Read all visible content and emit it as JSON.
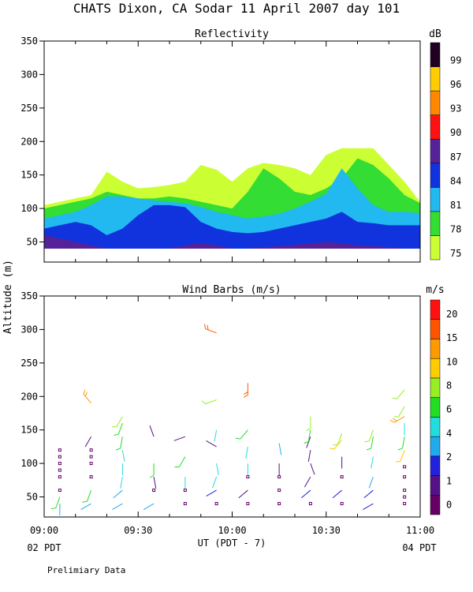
{
  "title": "CHATS Dixon, CA   Sodar   11 April 2007   day 101",
  "ylabel": "Altitude (m)",
  "xlabel": "UT  (PDT - 7)",
  "x_ticks": [
    "09:00",
    "09:30",
    "10:00",
    "10:30",
    "11:00"
  ],
  "pdt_left": "02 PDT",
  "pdt_right": "04 PDT",
  "footer": "Prelimiary Data",
  "chart_data": [
    {
      "type": "area",
      "title": "Reflectivity",
      "xlim": [
        0,
        120
      ],
      "ylim": [
        20,
        350
      ],
      "y_ticks": [
        50,
        100,
        150,
        200,
        250,
        300,
        350
      ],
      "legend": {
        "unit": "dB",
        "levels": [
          75,
          78,
          81,
          84,
          87,
          90,
          93,
          96,
          99
        ],
        "colors": [
          "#ccff33",
          "#33dd33",
          "#22b8f0",
          "#1133dd",
          "#552299",
          "#ff1111",
          "#ff8800",
          "#ffcc00",
          "#220022"
        ]
      },
      "contour_tops_x": [
        0,
        5,
        10,
        15,
        20,
        25,
        30,
        35,
        40,
        45,
        50,
        55,
        60,
        65,
        70,
        75,
        80,
        85,
        90,
        95,
        100,
        105,
        110,
        115,
        120
      ],
      "layers": [
        {
          "name": "75",
          "tops": [
            105,
            110,
            115,
            120,
            155,
            140,
            130,
            132,
            135,
            140,
            165,
            158,
            140,
            160,
            168,
            165,
            160,
            150,
            180,
            190,
            190,
            190,
            165,
            140,
            110
          ]
        },
        {
          "name": "78",
          "tops": [
            100,
            105,
            110,
            115,
            125,
            120,
            115,
            115,
            118,
            115,
            110,
            105,
            100,
            125,
            160,
            145,
            125,
            120,
            130,
            145,
            175,
            165,
            145,
            120,
            108
          ]
        },
        {
          "name": "81",
          "tops": [
            85,
            90,
            95,
            105,
            118,
            118,
            115,
            112,
            110,
            108,
            102,
            95,
            90,
            85,
            88,
            92,
            100,
            110,
            122,
            160,
            130,
            105,
            95,
            95,
            93
          ]
        },
        {
          "name": "84",
          "tops": [
            70,
            75,
            80,
            75,
            60,
            70,
            90,
            105,
            105,
            102,
            80,
            70,
            65,
            63,
            65,
            70,
            75,
            80,
            85,
            95,
            80,
            78,
            75,
            75,
            75
          ]
        },
        {
          "name": "87",
          "tops": [
            60,
            55,
            50,
            45,
            40,
            40,
            40,
            40,
            40,
            45,
            48,
            45,
            40,
            40,
            42,
            44,
            46,
            48,
            50,
            48,
            45,
            44,
            42,
            40,
            40
          ]
        }
      ]
    },
    {
      "type": "scatter",
      "title": "Wind Barbs (m/s)",
      "xlim": [
        0,
        120
      ],
      "ylim": [
        20,
        350
      ],
      "y_ticks": [
        50,
        100,
        150,
        200,
        250,
        300,
        350
      ],
      "legend": {
        "unit": "m/s",
        "labels": [
          "0",
          "1",
          "2",
          "4",
          "6",
          "8",
          "10",
          "15",
          "20"
        ],
        "colors": [
          "#660066",
          "#551188",
          "#2222dd",
          "#22aaee",
          "#22dddd",
          "#22dd22",
          "#99ee22",
          "#ffcc00",
          "#ff9900",
          "#ff5500",
          "#ff1111"
        ]
      },
      "barbs": [
        {
          "t": 5,
          "z": 40,
          "ws": 3,
          "dir": 180
        },
        {
          "t": 5,
          "z": 50,
          "ws": 5,
          "dir": 200
        },
        {
          "t": 5,
          "z": 60,
          "ws": 0,
          "dir": 0
        },
        {
          "t": 5,
          "z": 80,
          "ws": 0,
          "dir": 0
        },
        {
          "t": 5,
          "z": 90,
          "ws": 0,
          "dir": 0
        },
        {
          "t": 5,
          "z": 100,
          "ws": 0,
          "dir": 0
        },
        {
          "t": 5,
          "z": 110,
          "ws": 0,
          "dir": 0
        },
        {
          "t": 5,
          "z": 120,
          "ws": 0,
          "dir": 0
        },
        {
          "t": 15,
          "z": 40,
          "ws": 3,
          "dir": 240
        },
        {
          "t": 15,
          "z": 60,
          "ws": 5,
          "dir": 200
        },
        {
          "t": 15,
          "z": 80,
          "ws": 0,
          "dir": 0
        },
        {
          "t": 15,
          "z": 100,
          "ws": 0,
          "dir": 0
        },
        {
          "t": 15,
          "z": 110,
          "ws": 0,
          "dir": 0
        },
        {
          "t": 15,
          "z": 120,
          "ws": 0,
          "dir": 0
        },
        {
          "t": 15,
          "z": 140,
          "ws": 1,
          "dir": 210
        },
        {
          "t": 15,
          "z": 190,
          "ws": 10,
          "dir": 320
        },
        {
          "t": 25,
          "z": 40,
          "ws": 3,
          "dir": 240
        },
        {
          "t": 25,
          "z": 60,
          "ws": 3,
          "dir": 230
        },
        {
          "t": 25,
          "z": 80,
          "ws": 4,
          "dir": 190
        },
        {
          "t": 25,
          "z": 100,
          "ws": 4,
          "dir": 180
        },
        {
          "t": 25,
          "z": 120,
          "ws": 4,
          "dir": 170
        },
        {
          "t": 25,
          "z": 140,
          "ws": 5,
          "dir": 190
        },
        {
          "t": 25,
          "z": 160,
          "ws": 5,
          "dir": 200
        },
        {
          "t": 25,
          "z": 170,
          "ws": 6,
          "dir": 210
        },
        {
          "t": 35,
          "z": 40,
          "ws": 3,
          "dir": 240
        },
        {
          "t": 35,
          "z": 60,
          "ws": 0,
          "dir": 0
        },
        {
          "t": 35,
          "z": 80,
          "ws": 1,
          "dir": 170
        },
        {
          "t": 35,
          "z": 100,
          "ws": 5,
          "dir": 180
        },
        {
          "t": 35,
          "z": 140,
          "ws": 1,
          "dir": 340
        },
        {
          "t": 45,
          "z": 40,
          "ws": 0,
          "dir": 0
        },
        {
          "t": 45,
          "z": 60,
          "ws": 0,
          "dir": 0
        },
        {
          "t": 45,
          "z": 80,
          "ws": 4,
          "dir": 180
        },
        {
          "t": 45,
          "z": 110,
          "ws": 5,
          "dir": 210
        },
        {
          "t": 45,
          "z": 140,
          "ws": 1,
          "dir": 250
        },
        {
          "t": 55,
          "z": 40,
          "ws": 0,
          "dir": 0
        },
        {
          "t": 55,
          "z": 60,
          "ws": 2,
          "dir": 240
        },
        {
          "t": 55,
          "z": 80,
          "ws": 4,
          "dir": 200
        },
        {
          "t": 55,
          "z": 100,
          "ws": 4,
          "dir": 170
        },
        {
          "t": 55,
          "z": 125,
          "ws": 1,
          "dir": 300
        },
        {
          "t": 55,
          "z": 150,
          "ws": 4,
          "dir": 190
        },
        {
          "t": 55,
          "z": 195,
          "ws": 6,
          "dir": 250
        },
        {
          "t": 55,
          "z": 295,
          "ws": 15,
          "dir": 290
        },
        {
          "t": 65,
          "z": 40,
          "ws": 0,
          "dir": 0
        },
        {
          "t": 65,
          "z": 60,
          "ws": 1,
          "dir": 230
        },
        {
          "t": 65,
          "z": 80,
          "ws": 0,
          "dir": 0
        },
        {
          "t": 65,
          "z": 100,
          "ws": 4,
          "dir": 180
        },
        {
          "t": 65,
          "z": 125,
          "ws": 4,
          "dir": 190
        },
        {
          "t": 65,
          "z": 150,
          "ws": 5,
          "dir": 220
        },
        {
          "t": 65,
          "z": 220,
          "ws": 15,
          "dir": 180
        },
        {
          "t": 75,
          "z": 40,
          "ws": 0,
          "dir": 0
        },
        {
          "t": 75,
          "z": 60,
          "ws": 0,
          "dir": 0
        },
        {
          "t": 75,
          "z": 80,
          "ws": 0,
          "dir": 0
        },
        {
          "t": 75,
          "z": 100,
          "ws": 1,
          "dir": 180
        },
        {
          "t": 75,
          "z": 130,
          "ws": 3,
          "dir": 170
        },
        {
          "t": 85,
          "z": 40,
          "ws": 0,
          "dir": 0
        },
        {
          "t": 85,
          "z": 60,
          "ws": 2,
          "dir": 230
        },
        {
          "t": 85,
          "z": 80,
          "ws": 1,
          "dir": 210
        },
        {
          "t": 85,
          "z": 100,
          "ws": 1,
          "dir": 160
        },
        {
          "t": 85,
          "z": 120,
          "ws": 1,
          "dir": 190
        },
        {
          "t": 85,
          "z": 140,
          "ws": 1,
          "dir": 200
        },
        {
          "t": 85,
          "z": 150,
          "ws": 5,
          "dir": 190
        },
        {
          "t": 85,
          "z": 170,
          "ws": 6,
          "dir": 180
        },
        {
          "t": 95,
          "z": 40,
          "ws": 0,
          "dir": 0
        },
        {
          "t": 95,
          "z": 60,
          "ws": 2,
          "dir": 230
        },
        {
          "t": 95,
          "z": 80,
          "ws": 0,
          "dir": 0
        },
        {
          "t": 95,
          "z": 110,
          "ws": 1,
          "dir": 180
        },
        {
          "t": 95,
          "z": 135,
          "ws": 8,
          "dir": 220
        },
        {
          "t": 95,
          "z": 145,
          "ws": 6,
          "dir": 200
        },
        {
          "t": 105,
          "z": 40,
          "ws": 2,
          "dir": 240
        },
        {
          "t": 105,
          "z": 60,
          "ws": 2,
          "dir": 230
        },
        {
          "t": 105,
          "z": 80,
          "ws": 3,
          "dir": 200
        },
        {
          "t": 105,
          "z": 110,
          "ws": 4,
          "dir": 190
        },
        {
          "t": 105,
          "z": 140,
          "ws": 5,
          "dir": 190
        },
        {
          "t": 105,
          "z": 150,
          "ws": 6,
          "dir": 200
        },
        {
          "t": 115,
          "z": 40,
          "ws": 0,
          "dir": 0
        },
        {
          "t": 115,
          "z": 50,
          "ws": 0,
          "dir": 0
        },
        {
          "t": 115,
          "z": 60,
          "ws": 0,
          "dir": 0
        },
        {
          "t": 115,
          "z": 80,
          "ws": 0,
          "dir": 0
        },
        {
          "t": 115,
          "z": 95,
          "ws": 0,
          "dir": 0
        },
        {
          "t": 115,
          "z": 120,
          "ws": 8,
          "dir": 200
        },
        {
          "t": 115,
          "z": 140,
          "ws": 5,
          "dir": 190
        },
        {
          "t": 115,
          "z": 160,
          "ws": 4,
          "dir": 180
        },
        {
          "t": 115,
          "z": 170,
          "ws": 10,
          "dir": 240
        },
        {
          "t": 115,
          "z": 185,
          "ws": 6,
          "dir": 210
        },
        {
          "t": 115,
          "z": 210,
          "ws": 6,
          "dir": 220
        }
      ]
    }
  ]
}
